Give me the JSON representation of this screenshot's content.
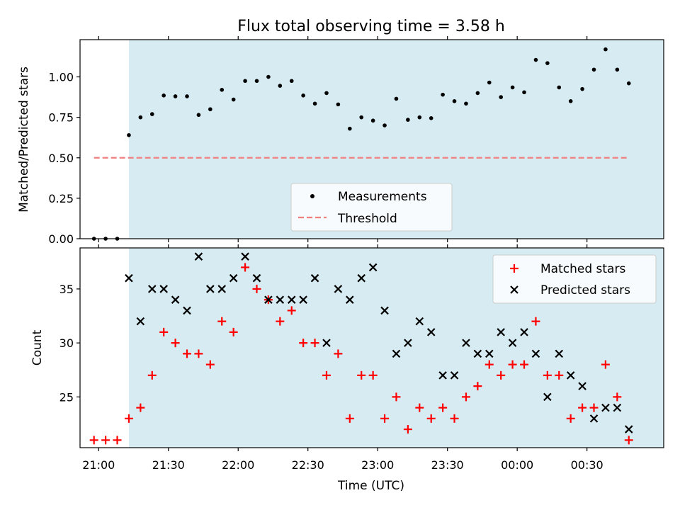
{
  "figure": {
    "title": "Flux total observing time = 3.58 h",
    "xlabel": "Time (UTC)"
  },
  "colors": {
    "shade": "#add8e6",
    "measurement": "#000000",
    "threshold": "#f08080",
    "matched": "#ff0000",
    "predicted": "#000000"
  },
  "chart_data": [
    {
      "type": "scatter",
      "ylabel": "Matched/Predicted stars",
      "xlim": [
        "20:52",
        "01:03"
      ],
      "ylim": [
        0,
        1.23
      ],
      "yticks": [
        0,
        0.25,
        0.5,
        0.75,
        1.0
      ],
      "ytick_labels": [
        "0.00",
        "0.25",
        "0.50",
        "0.75",
        "1.00"
      ],
      "shaded_region": [
        "21:13",
        "01:05"
      ],
      "legend_placement": "lower-center",
      "series": [
        {
          "name": "Measurements",
          "marker": "dot",
          "x": [
            "20:58",
            "21:03",
            "21:08",
            "21:13",
            "21:18",
            "21:23",
            "21:28",
            "21:33",
            "21:38",
            "21:43",
            "21:48",
            "21:53",
            "21:58",
            "22:03",
            "22:08",
            "22:13",
            "22:18",
            "22:23",
            "22:28",
            "22:33",
            "22:38",
            "22:43",
            "22:48",
            "22:53",
            "22:58",
            "23:03",
            "23:08",
            "23:13",
            "23:18",
            "23:23",
            "23:28",
            "23:33",
            "23:38",
            "23:43",
            "23:48",
            "23:53",
            "23:58",
            "00:03",
            "00:08",
            "00:13",
            "00:18",
            "00:23",
            "00:28",
            "00:33",
            "00:38",
            "00:43",
            "00:48"
          ],
          "y": [
            0.0,
            0.0,
            0.0,
            0.64,
            0.75,
            0.77,
            0.885,
            0.88,
            0.88,
            0.765,
            0.8,
            0.92,
            0.86,
            0.975,
            0.975,
            1.0,
            0.945,
            0.975,
            0.885,
            0.835,
            0.9,
            0.83,
            0.68,
            0.75,
            0.73,
            0.7,
            0.865,
            0.735,
            0.75,
            0.745,
            0.89,
            0.85,
            0.835,
            0.9,
            0.965,
            0.875,
            0.935,
            0.905,
            1.105,
            1.085,
            0.935,
            0.85,
            0.925,
            1.045,
            1.17,
            1.045,
            0.96
          ]
        },
        {
          "name": "Threshold",
          "line": "dashed",
          "x": [
            "20:58",
            "00:48"
          ],
          "y": [
            0.5,
            0.5
          ]
        }
      ]
    },
    {
      "type": "scatter",
      "ylabel": "Count",
      "xlim": [
        "20:52",
        "01:03"
      ],
      "ylim": [
        20.3,
        38.8
      ],
      "yticks": [
        25,
        30,
        35
      ],
      "xticks": [
        "21:00",
        "21:30",
        "22:00",
        "22:30",
        "23:00",
        "23:30",
        "00:00",
        "00:30"
      ],
      "shaded_region": [
        "21:13",
        "01:05"
      ],
      "legend_placement": "upper-right",
      "series": [
        {
          "name": "Matched stars",
          "marker": "plus",
          "x": [
            "20:58",
            "21:03",
            "21:08",
            "21:13",
            "21:18",
            "21:23",
            "21:28",
            "21:33",
            "21:38",
            "21:43",
            "21:48",
            "21:53",
            "21:58",
            "22:03",
            "22:08",
            "22:13",
            "22:18",
            "22:23",
            "22:28",
            "22:33",
            "22:38",
            "22:43",
            "22:48",
            "22:53",
            "22:58",
            "23:03",
            "23:08",
            "23:13",
            "23:18",
            "23:23",
            "23:28",
            "23:33",
            "23:38",
            "23:43",
            "23:48",
            "23:53",
            "23:58",
            "00:03",
            "00:08",
            "00:13",
            "00:18",
            "00:23",
            "00:28",
            "00:33",
            "00:38",
            "00:43",
            "00:48"
          ],
          "y": [
            21,
            21,
            21,
            23,
            24,
            27,
            31,
            30,
            29,
            29,
            28,
            32,
            31,
            37,
            35,
            34,
            32,
            33,
            30,
            30,
            27,
            29,
            23,
            27,
            27,
            23,
            25,
            22,
            24,
            23,
            24,
            23,
            25,
            26,
            28,
            27,
            28,
            28,
            32,
            27,
            27,
            23,
            24,
            24,
            28,
            25,
            21
          ]
        },
        {
          "name": "Predicted stars",
          "marker": "x",
          "x": [
            "21:13",
            "21:18",
            "21:23",
            "21:28",
            "21:33",
            "21:38",
            "21:43",
            "21:48",
            "21:53",
            "21:58",
            "22:03",
            "22:08",
            "22:13",
            "22:18",
            "22:23",
            "22:28",
            "22:33",
            "22:38",
            "22:43",
            "22:48",
            "22:53",
            "22:58",
            "23:03",
            "23:08",
            "23:13",
            "23:18",
            "23:23",
            "23:28",
            "23:33",
            "23:38",
            "23:43",
            "23:48",
            "23:53",
            "23:58",
            "00:03",
            "00:08",
            "00:13",
            "00:18",
            "00:23",
            "00:28",
            "00:33",
            "00:38",
            "00:43",
            "00:48"
          ],
          "y": [
            36,
            32,
            35,
            35,
            34,
            33,
            38,
            35,
            35,
            36,
            38,
            36,
            34,
            34,
            34,
            34,
            36,
            30,
            35,
            34,
            36,
            37,
            33,
            29,
            30,
            32,
            31,
            27,
            27,
            30,
            29,
            29,
            31,
            30,
            31,
            29,
            25,
            29,
            27,
            26,
            23,
            24,
            24,
            22
          ]
        }
      ]
    }
  ]
}
